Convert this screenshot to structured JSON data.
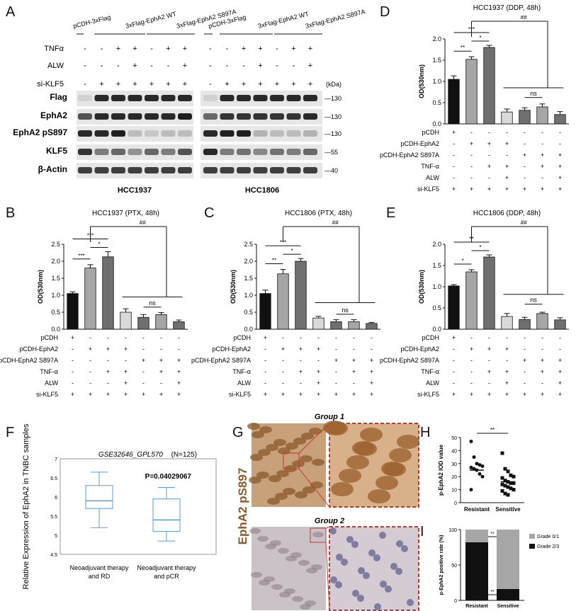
{
  "panel_letters": {
    "A": "A",
    "B": "B",
    "C": "C",
    "D": "D",
    "E": "E",
    "F": "F",
    "G": "G",
    "H": "H",
    "I": "I"
  },
  "colors": {
    "black": "#111111",
    "light_gray": "#d9d9d9",
    "mid_gray": "#a6a6a6",
    "dark_gray": "#6f6f6f",
    "box_blue": "#5b9bd5",
    "stain_brown": "#8a5a2b",
    "dash_red": "#c0392b"
  },
  "blot": {
    "headers": [
      "pCDH-3xFlag",
      "3xFlag-EphA2 WT",
      "3xFlag-EphA2 S897A",
      "pCDH-3xFlag",
      "3xFlag-EphA2 WT",
      "3xFlag-EphA2 S897A"
    ],
    "row_labels": {
      "tnf": "TNFα",
      "alw": "ALW",
      "siklf5": "si-KLF5"
    },
    "signs_tnf": [
      "-",
      "-",
      "+",
      "+",
      "-",
      "+",
      "+",
      "-",
      "-",
      "+",
      "+",
      "-",
      "+",
      "+"
    ],
    "signs_alw": [
      "-",
      "-",
      "-",
      "+",
      "-",
      "-",
      "+",
      "-",
      "-",
      "-",
      "+",
      "-",
      "-",
      "+"
    ],
    "signs_si": [
      "-",
      "+",
      "+",
      "+",
      "+",
      "+",
      "+",
      "-",
      "+",
      "+",
      "+",
      "+",
      "+",
      "+"
    ],
    "kda": "(kDa)",
    "bands": [
      {
        "label": "Flag",
        "mw": "130"
      },
      {
        "label": "EphA2",
        "mw": "130"
      },
      {
        "label": "EphA2 pS897",
        "mw": "130"
      },
      {
        "label": "KLF5",
        "mw": "55"
      },
      {
        "label": "β-Actin",
        "mw": "40"
      }
    ],
    "cell_lines": [
      "HCC1937",
      "HCC1806"
    ]
  },
  "bar_panels": {
    "row_labels": [
      "pCDH",
      "pCDH-EphA2",
      "pCDH-EphA2 S897A",
      "TNF-α",
      "ALW",
      "si-KLF5"
    ],
    "signs": [
      [
        "+",
        "-",
        "-",
        "-",
        "-",
        "-",
        "-"
      ],
      [
        "-",
        "+",
        "+",
        "+",
        "-",
        "-",
        "-"
      ],
      [
        "-",
        "-",
        "-",
        "-",
        "+",
        "+",
        "+"
      ],
      [
        "-",
        "-",
        "+",
        "+",
        "-",
        "+",
        "+"
      ],
      [
        "-",
        "-",
        "-",
        "+",
        "-",
        "-",
        "+"
      ],
      [
        "+",
        "+",
        "+",
        "+",
        "+",
        "+",
        "+"
      ]
    ],
    "ylabel": "OD(530nm)",
    "sig_labels": {
      "ns": "ns",
      "hash": "##"
    }
  },
  "chart_data": [
    {
      "type": "bar",
      "panel": "B",
      "title": "HCC1937 (PTX, 48h)",
      "ylabel": "OD(530nm)",
      "ylim": [
        0,
        2.5
      ],
      "values": [
        1.05,
        1.8,
        2.13,
        0.5,
        0.35,
        0.43,
        0.22
      ],
      "errors": [
        0.05,
        0.1,
        0.15,
        0.1,
        0.08,
        0.06,
        0.05
      ],
      "colors": [
        "#111111",
        "#a6a6a6",
        "#6f6f6f",
        "#d9d9d9",
        "#6f6f6f",
        "#a6a6a6",
        "#6f6f6f"
      ],
      "sig": [
        {
          "a": 0,
          "b": 1,
          "t": "***"
        },
        {
          "a": 0,
          "b": 2,
          "t": "***"
        },
        {
          "a": 1,
          "b": 2,
          "t": "*"
        }
      ]
    },
    {
      "type": "bar",
      "panel": "C",
      "title": "HCC1806 (PTX, 48h)",
      "ylabel": "OD(530nm)",
      "ylim": [
        0,
        2.5
      ],
      "values": [
        1.05,
        1.63,
        2.0,
        0.33,
        0.22,
        0.22,
        0.17
      ],
      "errors": [
        0.1,
        0.13,
        0.08,
        0.05,
        0.06,
        0.06,
        0.03
      ],
      "colors": [
        "#111111",
        "#a6a6a6",
        "#6f6f6f",
        "#d9d9d9",
        "#6f6f6f",
        "#a6a6a6",
        "#6f6f6f"
      ],
      "sig": [
        {
          "a": 0,
          "b": 1,
          "t": "**"
        },
        {
          "a": 0,
          "b": 2,
          "t": "***"
        },
        {
          "a": 1,
          "b": 2,
          "t": "*"
        }
      ]
    },
    {
      "type": "bar",
      "panel": "D",
      "title": "HCC1937 (DDP, 48h)",
      "ylabel": "OD(530nm)",
      "ylim": [
        0,
        2.0
      ],
      "values": [
        1.05,
        1.52,
        1.8,
        0.28,
        0.32,
        0.4,
        0.22
      ],
      "errors": [
        0.08,
        0.06,
        0.05,
        0.07,
        0.06,
        0.07,
        0.07
      ],
      "colors": [
        "#111111",
        "#a6a6a6",
        "#6f6f6f",
        "#d9d9d9",
        "#6f6f6f",
        "#a6a6a6",
        "#6f6f6f"
      ],
      "sig": [
        {
          "a": 0,
          "b": 1,
          "t": "**"
        },
        {
          "a": 0,
          "b": 2,
          "t": "***"
        },
        {
          "a": 1,
          "b": 2,
          "t": "*"
        }
      ]
    },
    {
      "type": "bar",
      "panel": "E",
      "title": "HCC1806 (DDP, 48h)",
      "ylabel": "OD(530nm)",
      "ylim": [
        0,
        2.0
      ],
      "values": [
        1.02,
        1.35,
        1.7,
        0.3,
        0.23,
        0.37,
        0.22
      ],
      "errors": [
        0.03,
        0.05,
        0.05,
        0.07,
        0.05,
        0.03,
        0.05
      ],
      "colors": [
        "#111111",
        "#a6a6a6",
        "#6f6f6f",
        "#d9d9d9",
        "#6f6f6f",
        "#a6a6a6",
        "#6f6f6f"
      ],
      "sig": [
        {
          "a": 0,
          "b": 1,
          "t": "*"
        },
        {
          "a": 0,
          "b": 2,
          "t": "**"
        },
        {
          "a": 1,
          "b": 2,
          "t": "*"
        }
      ]
    },
    {
      "type": "box",
      "panel": "F",
      "title": "GSE32646_GPL570",
      "n_label": "(N=125)",
      "pvalue": "P=0.04029067",
      "ylabel": "Relative Expression of EphA2 in TNBC samples",
      "ylim": [
        4.5,
        7
      ],
      "categories": [
        "Neoadjuvant therapy and RD",
        "Neoadjuvant therapy and pCR"
      ],
      "boxes": [
        {
          "min": 5.2,
          "q1": 5.7,
          "median": 5.9,
          "q3": 6.3,
          "max": 6.65
        },
        {
          "min": 4.85,
          "q1": 5.1,
          "median": 5.4,
          "q3": 5.95,
          "max": 6.25
        }
      ],
      "yticks": [
        "4.5",
        "5",
        "5.5",
        "6",
        "6.5",
        "7"
      ]
    },
    {
      "type": "scatter",
      "panel": "H",
      "ylabel": "p-EphA2 IOD value",
      "ylim": [
        0,
        50
      ],
      "yticks": [
        0,
        10,
        20,
        30,
        40,
        50
      ],
      "categories": [
        "Resistant",
        "Sensitive"
      ],
      "sig": "**",
      "resistant": [
        47,
        35,
        30,
        29,
        28,
        27,
        26,
        25,
        22,
        20,
        10
      ],
      "sensitive": [
        38,
        26,
        24,
        21,
        20,
        19,
        17,
        16,
        15,
        15,
        14,
        13,
        12,
        11,
        10,
        9,
        7,
        6
      ]
    },
    {
      "type": "bar",
      "panel": "I",
      "stacked": true,
      "ylabel": "p-EphA2 positive rate (%)",
      "ylim": [
        0,
        100
      ],
      "yticks": [
        0,
        50,
        100
      ],
      "categories": [
        "Resistant",
        "Sensitive"
      ],
      "series": [
        {
          "name": "Grade 0/1",
          "values": [
            18,
            84
          ]
        },
        {
          "name": "Grade 2/3",
          "values": [
            82,
            16
          ]
        }
      ],
      "sig": "**"
    }
  ],
  "ihc": {
    "group1": "Group 1",
    "group2": "Group 2",
    "stain_label": "EphA2 pS897"
  }
}
